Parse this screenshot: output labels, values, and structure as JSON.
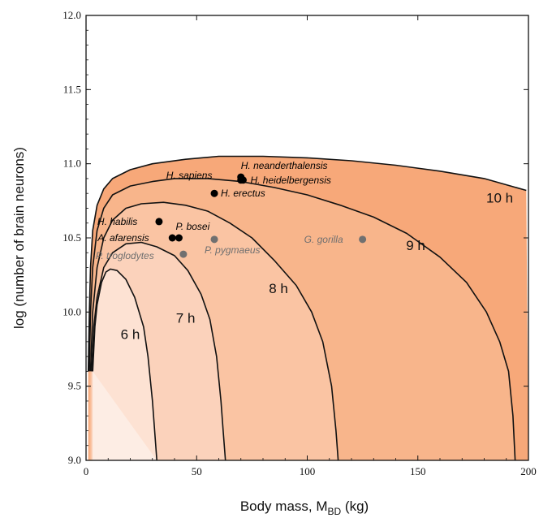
{
  "chart_data": {
    "type": "area",
    "title": "",
    "xlabel": "Body mass, M",
    "xlabel_sub": "BD",
    "xlabel_unit": " (kg)",
    "ylabel": "log (number of brain neurons)",
    "xlim": [
      0,
      200
    ],
    "ylim": [
      9.0,
      12.0
    ],
    "xticks": [
      0,
      50,
      100,
      150,
      200
    ],
    "yticks": [
      9.0,
      9.5,
      10.0,
      10.5,
      11.0,
      11.5,
      12.0
    ],
    "grid": false,
    "regions": [
      {
        "label": "10 h",
        "label_at": [
          187,
          10.77
        ],
        "color": "#f7a879",
        "boundary": [
          [
            1,
            9.6
          ],
          [
            1.5,
            10.0
          ],
          [
            2,
            10.3
          ],
          [
            3,
            10.55
          ],
          [
            5,
            10.72
          ],
          [
            8,
            10.83
          ],
          [
            12,
            10.9
          ],
          [
            20,
            10.96
          ],
          [
            30,
            11.0
          ],
          [
            45,
            11.03
          ],
          [
            60,
            11.05
          ],
          [
            80,
            11.05
          ],
          [
            100,
            11.04
          ],
          [
            120,
            11.02
          ],
          [
            140,
            10.99
          ],
          [
            160,
            10.95
          ],
          [
            180,
            10.9
          ],
          [
            199,
            10.82
          ]
        ]
      },
      {
        "label": "9 h",
        "label_at": [
          149,
          10.45
        ],
        "color": "#f8b58b",
        "boundary": [
          [
            1.5,
            9.6
          ],
          [
            2,
            10.0
          ],
          [
            3,
            10.3
          ],
          [
            5,
            10.55
          ],
          [
            8,
            10.7
          ],
          [
            12,
            10.79
          ],
          [
            20,
            10.85
          ],
          [
            30,
            10.88
          ],
          [
            40,
            10.9
          ],
          [
            55,
            10.9
          ],
          [
            70,
            10.88
          ],
          [
            85,
            10.84
          ],
          [
            100,
            10.79
          ],
          [
            115,
            10.72
          ],
          [
            130,
            10.64
          ],
          [
            145,
            10.53
          ],
          [
            160,
            10.37
          ],
          [
            172,
            10.2
          ],
          [
            181,
            10.0
          ],
          [
            187,
            9.8
          ],
          [
            191,
            9.6
          ],
          [
            193,
            9.3
          ],
          [
            194,
            9.0
          ]
        ]
      },
      {
        "label": "8 h",
        "label_at": [
          87,
          10.16
        ],
        "color": "#fac4a3",
        "boundary": [
          [
            2,
            9.6
          ],
          [
            3,
            10.0
          ],
          [
            5,
            10.3
          ],
          [
            8,
            10.5
          ],
          [
            12,
            10.62
          ],
          [
            18,
            10.7
          ],
          [
            25,
            10.73
          ],
          [
            35,
            10.74
          ],
          [
            45,
            10.72
          ],
          [
            55,
            10.68
          ],
          [
            65,
            10.6
          ],
          [
            75,
            10.5
          ],
          [
            85,
            10.35
          ],
          [
            95,
            10.18
          ],
          [
            102,
            10.0
          ],
          [
            107,
            9.8
          ],
          [
            111,
            9.5
          ],
          [
            113,
            9.2
          ],
          [
            114,
            9.0
          ]
        ]
      },
      {
        "label": "7 h",
        "label_at": [
          45,
          9.96
        ],
        "color": "#fbd2bb",
        "boundary": [
          [
            2.5,
            9.6
          ],
          [
            3.5,
            9.9
          ],
          [
            5,
            10.1
          ],
          [
            8,
            10.3
          ],
          [
            12,
            10.4
          ],
          [
            18,
            10.46
          ],
          [
            25,
            10.47
          ],
          [
            32,
            10.44
          ],
          [
            40,
            10.38
          ],
          [
            46,
            10.28
          ],
          [
            52,
            10.12
          ],
          [
            56,
            9.95
          ],
          [
            59,
            9.7
          ],
          [
            61,
            9.4
          ],
          [
            62,
            9.2
          ],
          [
            63,
            9.0
          ]
        ]
      },
      {
        "label": "6 h",
        "label_at": [
          20,
          9.85
        ],
        "color": "#fde2d3",
        "boundary": [
          [
            3,
            9.6
          ],
          [
            4,
            9.9
          ],
          [
            5,
            10.05
          ],
          [
            7,
            10.2
          ],
          [
            9,
            10.27
          ],
          [
            11,
            10.29
          ],
          [
            14,
            10.28
          ],
          [
            18,
            10.22
          ],
          [
            22,
            10.1
          ],
          [
            26,
            9.9
          ],
          [
            28,
            9.7
          ],
          [
            30,
            9.4
          ],
          [
            31,
            9.2
          ],
          [
            32,
            9.0
          ]
        ]
      },
      {
        "label": "",
        "label_at": null,
        "color": "#fdede4",
        "boundary": [
          [
            3,
            9.0
          ],
          [
            3,
            9.6
          ]
        ]
      }
    ],
    "points": [
      {
        "name": "H. neanderthalensis",
        "x": 70,
        "y": 10.91,
        "color": "#000000",
        "label_dx": 0,
        "label_dy": -14
      },
      {
        "name": "H. heidelbergensis",
        "x": 71,
        "y": 10.89,
        "color": "#000000",
        "label_dx": 9,
        "label_dy": 0
      },
      {
        "name": "H. sapiens",
        "x": 70,
        "y": 10.89,
        "color": "#000000",
        "label_dx": -92,
        "label_dy": -6
      },
      {
        "name": "H. erectus",
        "x": 58,
        "y": 10.8,
        "color": "#000000",
        "label_dx": 8,
        "label_dy": 0
      },
      {
        "name": "H. habilis",
        "x": 33,
        "y": 10.61,
        "color": "#000000",
        "label_dx": -76,
        "label_dy": 0
      },
      {
        "name": "P. bosei",
        "x": 42,
        "y": 10.5,
        "color": "#000000",
        "label_dx": -4,
        "label_dy": -14
      },
      {
        "name": "A. afarensis",
        "x": 39,
        "y": 10.5,
        "color": "#000000",
        "label_dx": -92,
        "label_dy": 0
      },
      {
        "name": "P. pygmaeus",
        "x": 58,
        "y": 10.49,
        "color": "#707070",
        "label_dx": -12,
        "label_dy": 13
      },
      {
        "name": "G. gorilla",
        "x": 125,
        "y": 10.49,
        "color": "#707070",
        "label_dx": -72,
        "label_dy": 0
      },
      {
        "name": "P. troglodytes",
        "x": 44,
        "y": 10.39,
        "color": "#707070",
        "label_dx": -108,
        "label_dy": 2
      }
    ]
  }
}
